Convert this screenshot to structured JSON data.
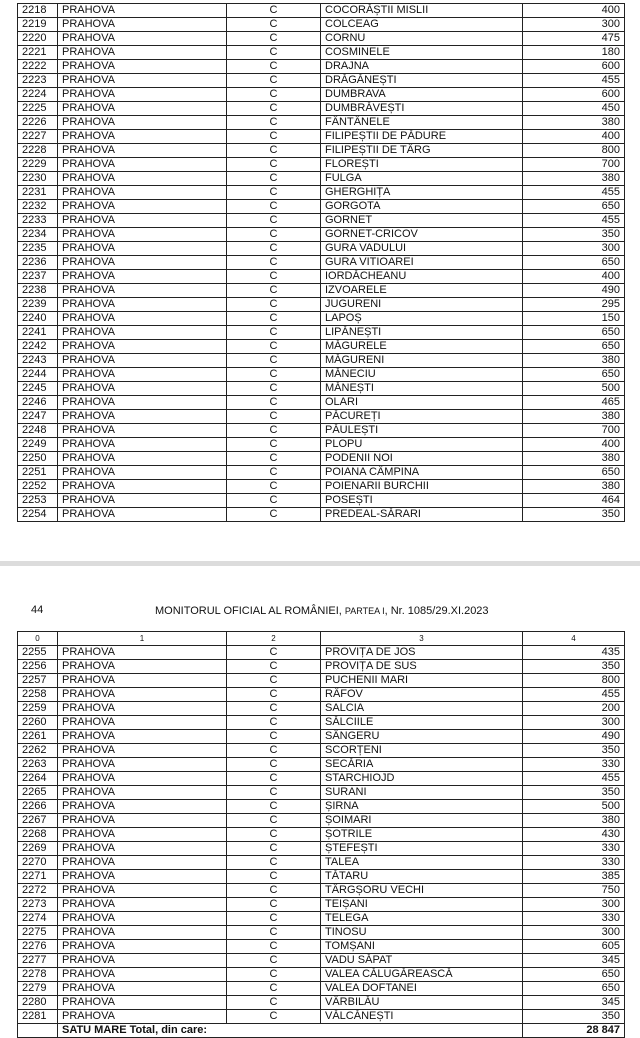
{
  "table1": {
    "rows": [
      [
        "2218",
        "PRAHOVA",
        "C",
        "COCORĂȘTII MISLII",
        "400"
      ],
      [
        "2219",
        "PRAHOVA",
        "C",
        "COLCEAG",
        "300"
      ],
      [
        "2220",
        "PRAHOVA",
        "C",
        "CORNU",
        "475"
      ],
      [
        "2221",
        "PRAHOVA",
        "C",
        "COSMINELE",
        "180"
      ],
      [
        "2222",
        "PRAHOVA",
        "C",
        "DRAJNA",
        "600"
      ],
      [
        "2223",
        "PRAHOVA",
        "C",
        "DRĂGĂNEȘTI",
        "455"
      ],
      [
        "2224",
        "PRAHOVA",
        "C",
        "DUMBRAVA",
        "600"
      ],
      [
        "2225",
        "PRAHOVA",
        "C",
        "DUMBRĂVEȘTI",
        "450"
      ],
      [
        "2226",
        "PRAHOVA",
        "C",
        "FÂNTÂNELE",
        "380"
      ],
      [
        "2227",
        "PRAHOVA",
        "C",
        "FILIPEȘTII DE PĂDURE",
        "400"
      ],
      [
        "2228",
        "PRAHOVA",
        "C",
        "FILIPEȘTII DE TÂRG",
        "800"
      ],
      [
        "2229",
        "PRAHOVA",
        "C",
        "FLOREȘTI",
        "700"
      ],
      [
        "2230",
        "PRAHOVA",
        "C",
        "FULGA",
        "380"
      ],
      [
        "2231",
        "PRAHOVA",
        "C",
        "GHERGHIȚA",
        "455"
      ],
      [
        "2232",
        "PRAHOVA",
        "C",
        "GORGOTA",
        "650"
      ],
      [
        "2233",
        "PRAHOVA",
        "C",
        "GORNET",
        "455"
      ],
      [
        "2234",
        "PRAHOVA",
        "C",
        "GORNET-CRICOV",
        "350"
      ],
      [
        "2235",
        "PRAHOVA",
        "C",
        "GURA VADULUI",
        "300"
      ],
      [
        "2236",
        "PRAHOVA",
        "C",
        "GURA VITIOAREI",
        "650"
      ],
      [
        "2237",
        "PRAHOVA",
        "C",
        "IORDĂCHEANU",
        "400"
      ],
      [
        "2238",
        "PRAHOVA",
        "C",
        "IZVOARELE",
        "490"
      ],
      [
        "2239",
        "PRAHOVA",
        "C",
        "JUGURENI",
        "295"
      ],
      [
        "2240",
        "PRAHOVA",
        "C",
        "LAPOȘ",
        "150"
      ],
      [
        "2241",
        "PRAHOVA",
        "C",
        "LIPĂNEȘTI",
        "650"
      ],
      [
        "2242",
        "PRAHOVA",
        "C",
        "MĂGURELE",
        "650"
      ],
      [
        "2243",
        "PRAHOVA",
        "C",
        "MĂGURENI",
        "380"
      ],
      [
        "2244",
        "PRAHOVA",
        "C",
        "MĂNECIU",
        "650"
      ],
      [
        "2245",
        "PRAHOVA",
        "C",
        "MĂNEȘTI",
        "500"
      ],
      [
        "2246",
        "PRAHOVA",
        "C",
        "OLARI",
        "465"
      ],
      [
        "2247",
        "PRAHOVA",
        "C",
        "PĂCUREȚI",
        "380"
      ],
      [
        "2248",
        "PRAHOVA",
        "C",
        "PĂULEȘTI",
        "700"
      ],
      [
        "2249",
        "PRAHOVA",
        "C",
        "PLOPU",
        "400"
      ],
      [
        "2250",
        "PRAHOVA",
        "C",
        "PODENII NOI",
        "380"
      ],
      [
        "2251",
        "PRAHOVA",
        "C",
        "POIANA CÂMPINA",
        "650"
      ],
      [
        "2252",
        "PRAHOVA",
        "C",
        "POIENARII BURCHII",
        "380"
      ],
      [
        "2253",
        "PRAHOVA",
        "C",
        "POSEȘTI",
        "464"
      ],
      [
        "2254",
        "PRAHOVA",
        "C",
        "PREDEAL-SĂRARI",
        "350"
      ]
    ]
  },
  "header": {
    "page_number": "44",
    "title_start": "MONITORUL OFICIAL AL ROMÂNIEI,",
    "title_part": "PARTEA I",
    "title_end": ", Nr. 1085/29.XI.2023"
  },
  "table2": {
    "columns": [
      "0",
      "1",
      "2",
      "3",
      "4"
    ],
    "rows": [
      [
        "2255",
        "PRAHOVA",
        "C",
        "PROVIȚA DE JOS",
        "435"
      ],
      [
        "2256",
        "PRAHOVA",
        "C",
        "PROVIȚA DE SUS",
        "350"
      ],
      [
        "2257",
        "PRAHOVA",
        "C",
        "PUCHENII MARI",
        "800"
      ],
      [
        "2258",
        "PRAHOVA",
        "C",
        "RÂFOV",
        "455"
      ],
      [
        "2259",
        "PRAHOVA",
        "C",
        "SALCIA",
        "200"
      ],
      [
        "2260",
        "PRAHOVA",
        "C",
        "SĂLCIILE",
        "300"
      ],
      [
        "2261",
        "PRAHOVA",
        "C",
        "SÂNGERU",
        "490"
      ],
      [
        "2262",
        "PRAHOVA",
        "C",
        "SCORȚENI",
        "350"
      ],
      [
        "2263",
        "PRAHOVA",
        "C",
        "SECĂRIA",
        "330"
      ],
      [
        "2264",
        "PRAHOVA",
        "C",
        "STARCHIOJD",
        "455"
      ],
      [
        "2265",
        "PRAHOVA",
        "C",
        "SURANI",
        "350"
      ],
      [
        "2266",
        "PRAHOVA",
        "C",
        "ȘIRNA",
        "500"
      ],
      [
        "2267",
        "PRAHOVA",
        "C",
        "ȘOIMARI",
        "380"
      ],
      [
        "2268",
        "PRAHOVA",
        "C",
        "ȘOTRILE",
        "430"
      ],
      [
        "2269",
        "PRAHOVA",
        "C",
        "ȘTEFEȘTI",
        "330"
      ],
      [
        "2270",
        "PRAHOVA",
        "C",
        "TALEA",
        "330"
      ],
      [
        "2271",
        "PRAHOVA",
        "C",
        "TĂTARU",
        "385"
      ],
      [
        "2272",
        "PRAHOVA",
        "C",
        "TÂRGȘORU VECHI",
        "750"
      ],
      [
        "2273",
        "PRAHOVA",
        "C",
        "TEIȘANI",
        "300"
      ],
      [
        "2274",
        "PRAHOVA",
        "C",
        "TELEGA",
        "330"
      ],
      [
        "2275",
        "PRAHOVA",
        "C",
        "TINOSU",
        "300"
      ],
      [
        "2276",
        "PRAHOVA",
        "C",
        "TOMȘANI",
        "605"
      ],
      [
        "2277",
        "PRAHOVA",
        "C",
        "VADU SĂPAT",
        "345"
      ],
      [
        "2278",
        "PRAHOVA",
        "C",
        "VALEA CĂLUGĂREASCĂ",
        "650"
      ],
      [
        "2279",
        "PRAHOVA",
        "C",
        "VALEA DOFTANEI",
        "650"
      ],
      [
        "2280",
        "PRAHOVA",
        "C",
        "VÂRBILĂU",
        "345"
      ],
      [
        "2281",
        "PRAHOVA",
        "C",
        "VĂLCĂNEȘTI",
        "350"
      ]
    ],
    "total": {
      "label": "SATU MARE Total, din care:",
      "value": "28 847"
    }
  }
}
